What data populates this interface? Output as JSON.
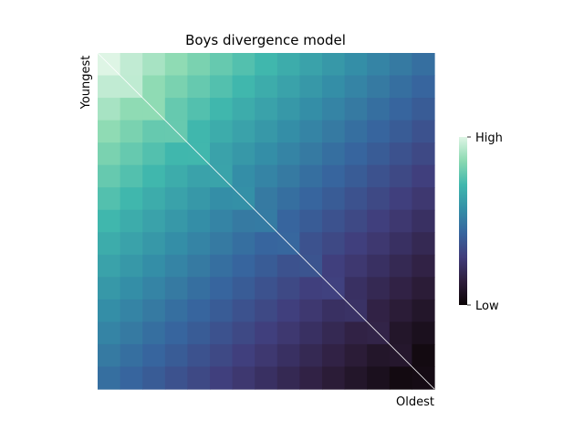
{
  "chart_data": {
    "type": "heatmap",
    "title": "Boys divergence model",
    "rows": 15,
    "cols": 15,
    "y_start_label": "Youngest",
    "x_end_label": "Oldest",
    "colorbar": {
      "high_label": "High",
      "low_label": "Low"
    },
    "value_rule": "value = 1 - ((row + col) / 28) ^ 0.9, row/col index from top-left (0..14); diagonal cells shown slightly lighter",
    "colormap": [
      "#0b0405",
      "#2e1e3c",
      "#413d7b",
      "#37659e",
      "#348fa7",
      "#40b7ad",
      "#8ad9b1",
      "#def5e5"
    ],
    "diagonal_line_color": "#ffffff",
    "grid": false,
    "legend": "right"
  }
}
